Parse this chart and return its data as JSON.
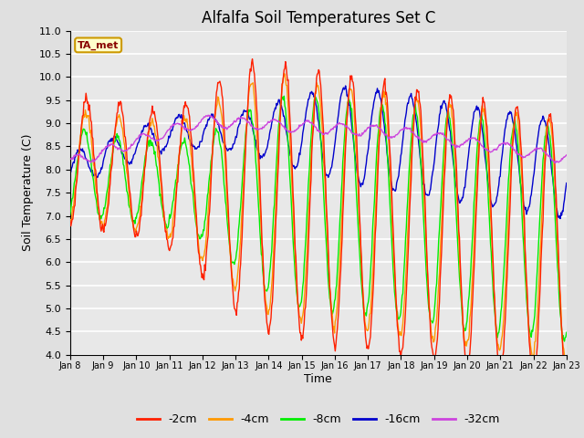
{
  "title": "Alfalfa Soil Temperatures Set C",
  "xlabel": "Time",
  "ylabel": "Soil Temperature (C)",
  "ylim": [
    4.0,
    11.0
  ],
  "yticks": [
    4.0,
    4.5,
    5.0,
    5.5,
    6.0,
    6.5,
    7.0,
    7.5,
    8.0,
    8.5,
    9.0,
    9.5,
    10.0,
    10.5,
    11.0
  ],
  "xtick_labels": [
    "Jan 8",
    "Jan 9",
    "Jan 10",
    "Jan 11",
    "Jan 12",
    "Jan 13",
    "Jan 14",
    "Jan 15",
    "Jan 16",
    "Jan 17",
    "Jan 18",
    "Jan 19",
    "Jan 20",
    "Jan 21",
    "Jan 22",
    "Jan 23"
  ],
  "n_days": 15,
  "colors_2cm": "#ff2000",
  "colors_4cm": "#ff9900",
  "colors_8cm": "#00ee00",
  "colors_16cm": "#0000cc",
  "colors_32cm": "#cc44dd",
  "ta_met_box_facecolor": "#ffffcc",
  "ta_met_box_edgecolor": "#cc9900",
  "ta_met_text_color": "#880000",
  "fig_facecolor": "#e0e0e0",
  "axes_facecolor": "#e8e8e8",
  "grid_color": "#ffffff",
  "title_fontsize": 12,
  "ylabel_fontsize": 9,
  "xlabel_fontsize": 9,
  "ytick_fontsize": 8,
  "xtick_fontsize": 7,
  "legend_fontsize": 9,
  "linewidth": 1.0
}
